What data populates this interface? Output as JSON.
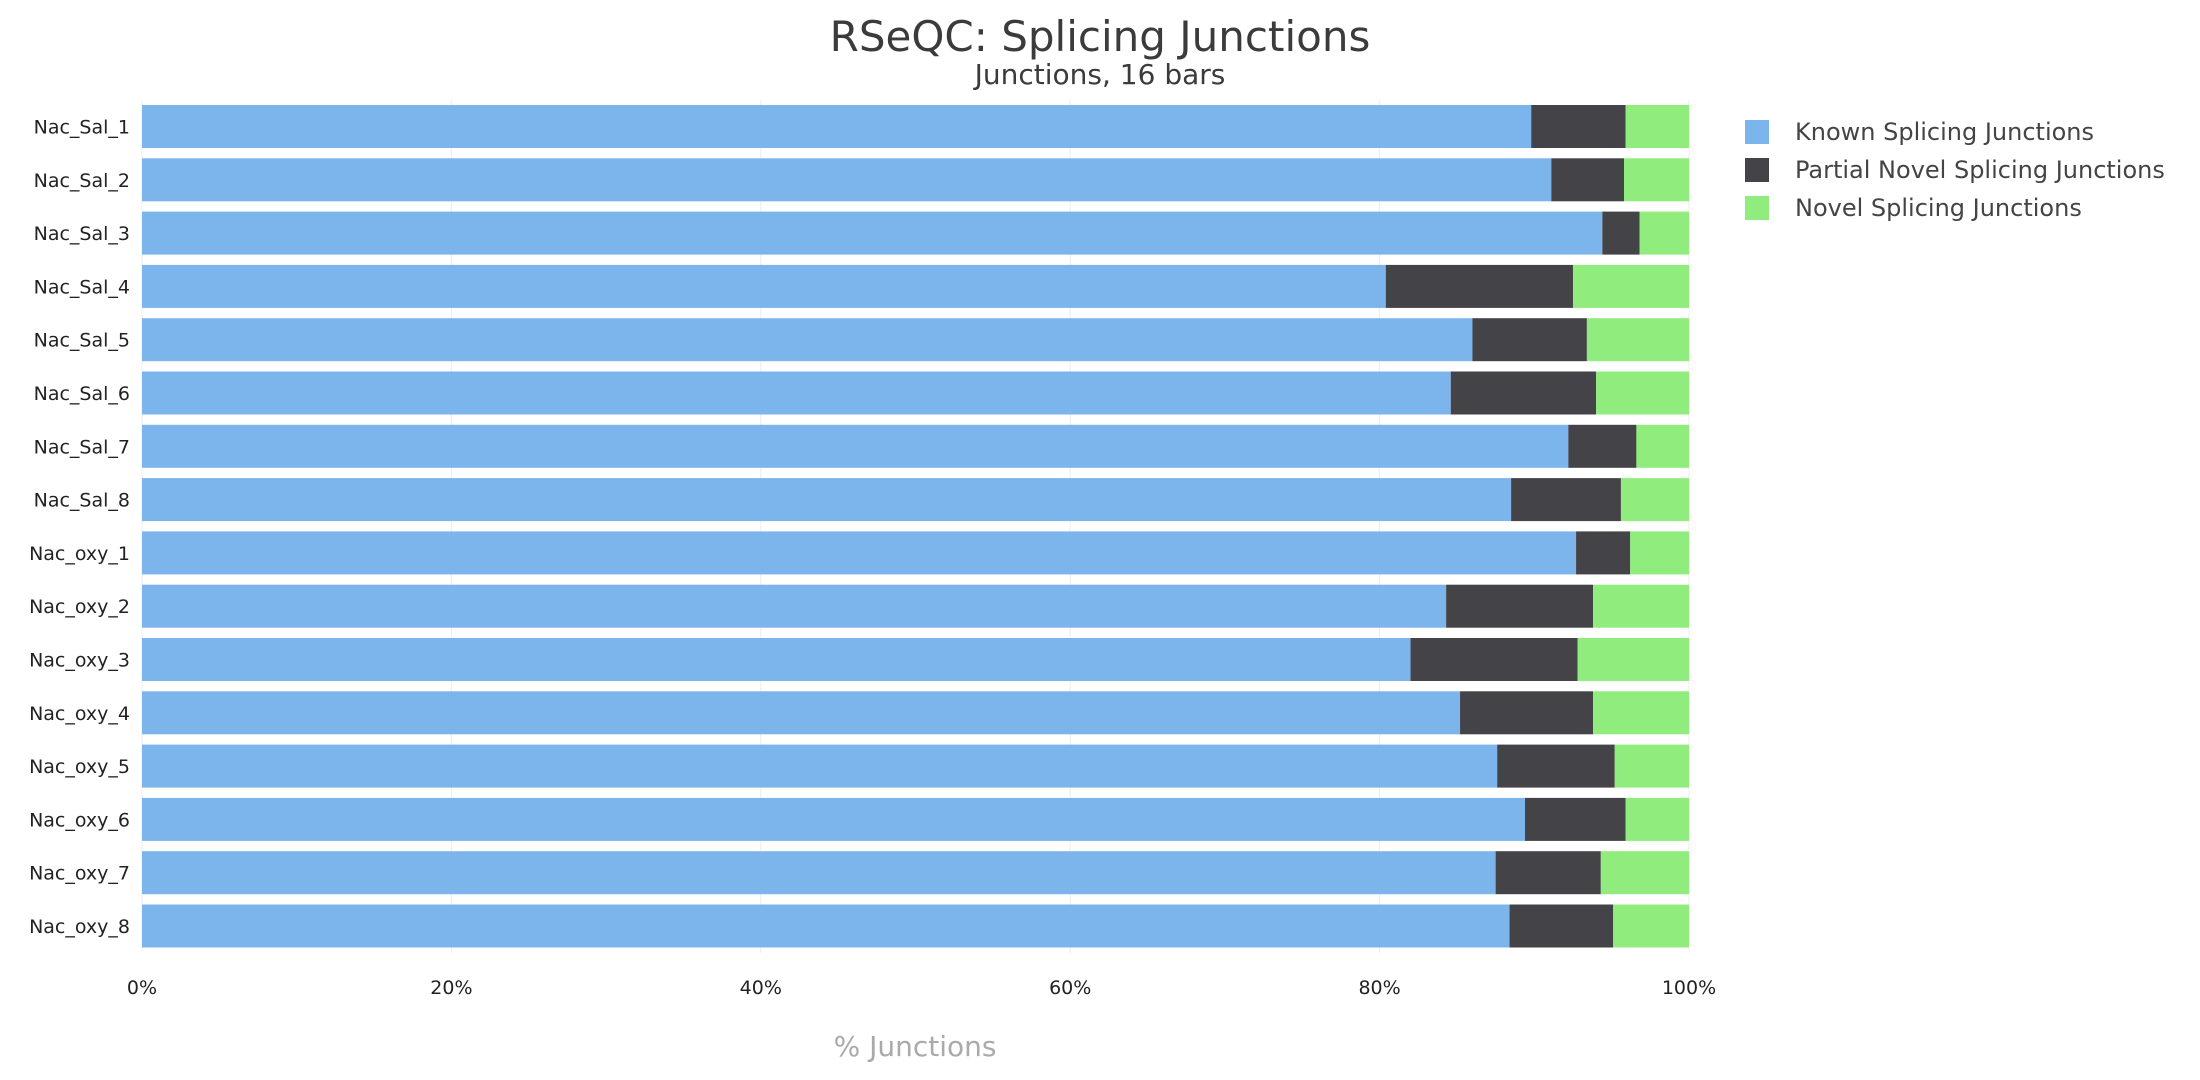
{
  "chart_data": {
    "type": "bar",
    "orientation": "horizontal",
    "stacked": true,
    "title": "RSeQC: Splicing Junctions",
    "subtitle": "Junctions, 16 bars",
    "xlabel": "% Junctions",
    "xlim": [
      0,
      100
    ],
    "x_ticks": [
      "0%",
      "20%",
      "40%",
      "60%",
      "80%",
      "100%"
    ],
    "grid": "vertical",
    "legend_position": "right",
    "categories": [
      "Nac_Sal_1",
      "Nac_Sal_2",
      "Nac_Sal_3",
      "Nac_Sal_4",
      "Nac_Sal_5",
      "Nac_Sal_6",
      "Nac_Sal_7",
      "Nac_Sal_8",
      "Nac_oxy_1",
      "Nac_oxy_2",
      "Nac_oxy_3",
      "Nac_oxy_4",
      "Nac_oxy_5",
      "Nac_oxy_6",
      "Nac_oxy_7",
      "Nac_oxy_8"
    ],
    "series": [
      {
        "name": "Known Splicing Junctions",
        "color": "#7cb5ec",
        "values": [
          89.8,
          91.1,
          94.4,
          80.4,
          86.0,
          84.6,
          92.2,
          88.5,
          92.7,
          84.3,
          82.0,
          85.2,
          87.6,
          89.4,
          87.5,
          88.4
        ]
      },
      {
        "name": "Partial Novel Splicing Junctions",
        "color": "#434348",
        "values": [
          6.1,
          4.7,
          2.4,
          12.1,
          7.4,
          9.4,
          4.4,
          7.1,
          3.5,
          9.5,
          10.8,
          8.6,
          7.6,
          6.5,
          6.8,
          6.7
        ]
      },
      {
        "name": "Novel Splicing Junctions",
        "color": "#90ed7d",
        "values": [
          4.1,
          4.2,
          3.2,
          7.5,
          6.6,
          6.0,
          3.4,
          4.4,
          3.8,
          6.2,
          7.2,
          6.2,
          4.8,
          4.1,
          5.7,
          4.9
        ]
      }
    ]
  }
}
